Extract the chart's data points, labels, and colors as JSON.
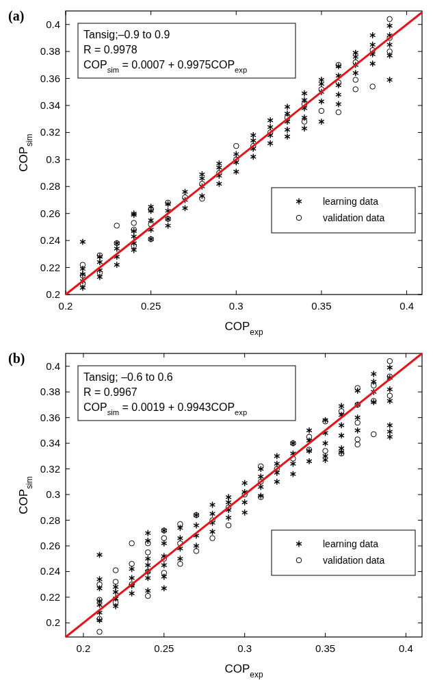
{
  "chart_data": [
    {
      "type": "scatter",
      "title": "(a)",
      "xlabel": "COP$_{exp}$",
      "ylabel": "COP$_{sim}$",
      "xlim": [
        0.2,
        0.409
      ],
      "ylim": [
        0.2,
        0.41
      ],
      "xticks": [
        0.2,
        0.25,
        0.3,
        0.35,
        0.4
      ],
      "yticks": [
        0.2,
        0.22,
        0.24,
        0.26,
        0.28,
        0.3,
        0.32,
        0.34,
        0.36,
        0.38,
        0.4
      ],
      "legend": "bottom right",
      "annotations": [
        "Tansig;–0.9 to 0.9",
        "R = 0.9978",
        "COP$_{sim}$ = 0.0007 + 0.9975COP$_{exp}$"
      ],
      "series": [
        {
          "name": "learning data",
          "marker": "cross",
          "color": "#000000",
          "x": [
            0.21,
            0.21,
            0.21,
            0.21,
            0.21,
            0.22,
            0.22,
            0.22,
            0.22,
            0.23,
            0.23,
            0.23,
            0.23,
            0.24,
            0.24,
            0.24,
            0.24,
            0.24,
            0.24,
            0.25,
            0.25,
            0.25,
            0.25,
            0.25,
            0.26,
            0.26,
            0.26,
            0.26,
            0.27,
            0.27,
            0.27,
            0.28,
            0.28,
            0.28,
            0.28,
            0.29,
            0.29,
            0.29,
            0.29,
            0.3,
            0.3,
            0.3,
            0.31,
            0.31,
            0.31,
            0.31,
            0.32,
            0.32,
            0.32,
            0.32,
            0.33,
            0.33,
            0.33,
            0.33,
            0.33,
            0.34,
            0.34,
            0.34,
            0.34,
            0.34,
            0.35,
            0.35,
            0.35,
            0.35,
            0.35,
            0.36,
            0.36,
            0.36,
            0.36,
            0.36,
            0.37,
            0.37,
            0.37,
            0.37,
            0.38,
            0.38,
            0.38,
            0.38,
            0.39,
            0.39,
            0.39,
            0.39,
            0.39
          ],
          "values": [
            0.205,
            0.21,
            0.215,
            0.219,
            0.239,
            0.213,
            0.218,
            0.224,
            0.228,
            0.222,
            0.228,
            0.234,
            0.238,
            0.233,
            0.238,
            0.243,
            0.247,
            0.26,
            0.259,
            0.241,
            0.248,
            0.255,
            0.262,
            0.265,
            0.251,
            0.256,
            0.262,
            0.267,
            0.264,
            0.27,
            0.276,
            0.273,
            0.28,
            0.286,
            0.289,
            0.282,
            0.288,
            0.294,
            0.297,
            0.291,
            0.298,
            0.304,
            0.302,
            0.308,
            0.314,
            0.318,
            0.312,
            0.318,
            0.324,
            0.329,
            0.322,
            0.328,
            0.334,
            0.339,
            0.317,
            0.331,
            0.338,
            0.344,
            0.349,
            0.323,
            0.343,
            0.35,
            0.356,
            0.359,
            0.328,
            0.348,
            0.355,
            0.362,
            0.369,
            0.341,
            0.364,
            0.37,
            0.376,
            0.379,
            0.371,
            0.378,
            0.385,
            0.392,
            0.377,
            0.385,
            0.392,
            0.399,
            0.359
          ]
        },
        {
          "name": "validation data",
          "marker": "circle",
          "color": "#000000",
          "x": [
            0.21,
            0.21,
            0.21,
            0.22,
            0.22,
            0.23,
            0.23,
            0.24,
            0.24,
            0.24,
            0.25,
            0.25,
            0.25,
            0.26,
            0.26,
            0.27,
            0.28,
            0.28,
            0.29,
            0.3,
            0.3,
            0.31,
            0.32,
            0.33,
            0.34,
            0.34,
            0.35,
            0.35,
            0.36,
            0.36,
            0.36,
            0.37,
            0.37,
            0.37,
            0.38,
            0.38,
            0.39,
            0.39,
            0.39
          ],
          "values": [
            0.222,
            0.208,
            0.214,
            0.229,
            0.216,
            0.251,
            0.238,
            0.253,
            0.248,
            0.236,
            0.263,
            0.241,
            0.252,
            0.268,
            0.256,
            0.272,
            0.271,
            0.282,
            0.29,
            0.31,
            0.3,
            0.31,
            0.32,
            0.331,
            0.328,
            0.341,
            0.336,
            0.352,
            0.335,
            0.37,
            0.357,
            0.352,
            0.359,
            0.372,
            0.354,
            0.381,
            0.404,
            0.39,
            0.38
          ]
        },
        {
          "type": "line",
          "color": "#e3151b",
          "x": [
            0.2,
            0.409
          ],
          "values": [
            0.2,
            0.409
          ]
        }
      ]
    },
    {
      "type": "scatter",
      "title": "(b)",
      "xlabel": "COP$_{exp}$",
      "ylabel": "COP$_{sim}$",
      "xlim": [
        0.189,
        0.41
      ],
      "ylim": [
        0.189,
        0.41
      ],
      "xticks": [
        0.2,
        0.25,
        0.3,
        0.35,
        0.4
      ],
      "yticks": [
        0.2,
        0.22,
        0.24,
        0.26,
        0.28,
        0.3,
        0.32,
        0.34,
        0.36,
        0.38,
        0.4
      ],
      "legend": "bottom right",
      "annotations": [
        "Tansig; –0.6 to 0.6",
        "R = 0.9967",
        "COP$_{sim}$ = 0.0019 + 0.9943COP$_{exp}$"
      ],
      "series": [
        {
          "name": "learning data",
          "marker": "cross",
          "color": "#000000",
          "x": [
            0.21,
            0.21,
            0.21,
            0.21,
            0.21,
            0.21,
            0.21,
            0.22,
            0.22,
            0.22,
            0.22,
            0.23,
            0.23,
            0.23,
            0.23,
            0.24,
            0.24,
            0.24,
            0.24,
            0.24,
            0.24,
            0.24,
            0.25,
            0.25,
            0.25,
            0.25,
            0.25,
            0.25,
            0.26,
            0.26,
            0.26,
            0.26,
            0.27,
            0.27,
            0.27,
            0.27,
            0.28,
            0.28,
            0.28,
            0.28,
            0.29,
            0.29,
            0.29,
            0.29,
            0.3,
            0.3,
            0.3,
            0.3,
            0.31,
            0.31,
            0.31,
            0.31,
            0.32,
            0.32,
            0.32,
            0.32,
            0.33,
            0.33,
            0.33,
            0.33,
            0.34,
            0.34,
            0.34,
            0.34,
            0.35,
            0.35,
            0.35,
            0.35,
            0.35,
            0.36,
            0.36,
            0.36,
            0.36,
            0.36,
            0.36,
            0.37,
            0.37,
            0.37,
            0.37,
            0.38,
            0.38,
            0.38,
            0.38,
            0.39,
            0.39,
            0.39,
            0.39,
            0.39,
            0.39,
            0.39
          ],
          "values": [
            0.202,
            0.208,
            0.214,
            0.217,
            0.253,
            0.234,
            0.227,
            0.213,
            0.219,
            0.224,
            0.228,
            0.223,
            0.229,
            0.235,
            0.242,
            0.225,
            0.27,
            0.264,
            0.235,
            0.24,
            0.245,
            0.25,
            0.227,
            0.236,
            0.245,
            0.252,
            0.272,
            0.262,
            0.25,
            0.258,
            0.266,
            0.274,
            0.26,
            0.268,
            0.276,
            0.284,
            0.271,
            0.278,
            0.285,
            0.292,
            0.282,
            0.288,
            0.294,
            0.298,
            0.286,
            0.294,
            0.302,
            0.309,
            0.299,
            0.306,
            0.314,
            0.32,
            0.31,
            0.317,
            0.324,
            0.33,
            0.316,
            0.324,
            0.332,
            0.34,
            0.326,
            0.334,
            0.342,
            0.35,
            0.327,
            0.33,
            0.34,
            0.348,
            0.358,
            0.346,
            0.354,
            0.362,
            0.369,
            0.336,
            0.333,
            0.35,
            0.36,
            0.37,
            0.381,
            0.372,
            0.38,
            0.388,
            0.394,
            0.373,
            0.382,
            0.391,
            0.399,
            0.354,
            0.349,
            0.345
          ]
        },
        {
          "name": "validation data",
          "marker": "circle",
          "color": "#000000",
          "x": [
            0.21,
            0.21,
            0.21,
            0.21,
            0.22,
            0.22,
            0.22,
            0.23,
            0.23,
            0.23,
            0.24,
            0.24,
            0.24,
            0.24,
            0.25,
            0.25,
            0.25,
            0.25,
            0.26,
            0.26,
            0.26,
            0.27,
            0.27,
            0.28,
            0.28,
            0.29,
            0.29,
            0.3,
            0.31,
            0.31,
            0.31,
            0.32,
            0.33,
            0.33,
            0.34,
            0.34,
            0.35,
            0.35,
            0.36,
            0.36,
            0.37,
            0.37,
            0.37,
            0.37,
            0.37,
            0.38,
            0.38,
            0.38,
            0.39,
            0.39,
            0.39
          ],
          "values": [
            0.193,
            0.218,
            0.23,
            0.203,
            0.241,
            0.232,
            0.216,
            0.262,
            0.246,
            0.23,
            0.221,
            0.262,
            0.255,
            0.24,
            0.239,
            0.266,
            0.272,
            0.25,
            0.246,
            0.277,
            0.262,
            0.256,
            0.284,
            0.266,
            0.28,
            0.276,
            0.29,
            0.3,
            0.322,
            0.298,
            0.31,
            0.32,
            0.34,
            0.328,
            0.345,
            0.335,
            0.334,
            0.357,
            0.332,
            0.365,
            0.383,
            0.356,
            0.343,
            0.339,
            0.37,
            0.373,
            0.347,
            0.385,
            0.404,
            0.377,
            0.392
          ]
        },
        {
          "type": "line",
          "color": "#e3151b",
          "x": [
            0.189,
            0.41
          ],
          "values": [
            0.189,
            0.41
          ]
        }
      ]
    }
  ]
}
